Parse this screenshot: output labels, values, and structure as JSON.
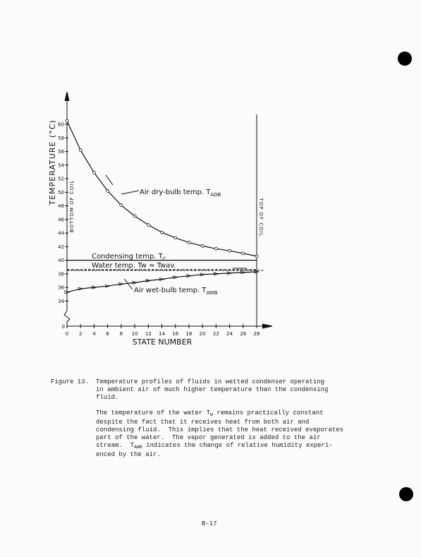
{
  "chart_data": {
    "type": "line",
    "ylabel": "TEMPERATURE (°C)",
    "xlabel": "STATE NUMBER",
    "x": [
      0,
      2,
      4,
      6,
      8,
      10,
      12,
      14,
      16,
      18,
      20,
      22,
      24,
      26,
      28
    ],
    "xlim": [
      0,
      28
    ],
    "xticks": [
      0,
      2,
      4,
      6,
      8,
      10,
      12,
      14,
      16,
      18,
      20,
      22,
      24,
      26,
      28
    ],
    "ylim": [
      33,
      61
    ],
    "yticks": [
      34,
      36,
      38,
      40,
      42,
      44,
      46,
      48,
      50,
      52,
      54,
      56,
      58,
      60
    ],
    "y_origin_label": "0",
    "series": [
      {
        "name": "Air dry-bulb temp. T",
        "sub": "ADB",
        "color": "#111",
        "marker": "circle",
        "dash": false,
        "values": [
          60.5,
          56.2,
          52.9,
          50.2,
          48.1,
          46.5,
          45.2,
          44.1,
          43.3,
          42.6,
          42.1,
          41.7,
          41.4,
          41.0,
          40.6
        ]
      },
      {
        "name": "Condensing temp. T",
        "sub": "C",
        "color": "#111",
        "marker": "none",
        "dash": false,
        "values": [
          40,
          40,
          40,
          40,
          40,
          40,
          40,
          40,
          40,
          40,
          40,
          40,
          40,
          40,
          40
        ]
      },
      {
        "name": "Water temp. Tw ≈ Twav.",
        "sub": "",
        "color": "#111",
        "marker": "none",
        "dash": true,
        "values": [
          38.6,
          38.6,
          38.6,
          38.6,
          38.6,
          38.6,
          38.6,
          38.6,
          38.6,
          38.6,
          38.6,
          38.6,
          38.6,
          38.6,
          38.6
        ]
      },
      {
        "name": "Air wet-bulb temp. T",
        "sub": "AWB",
        "color": "#111",
        "marker": "arrow",
        "dash": false,
        "values": [
          35.3,
          35.8,
          36.0,
          36.2,
          36.5,
          36.7,
          37.0,
          37.2,
          37.5,
          37.7,
          37.9,
          38.0,
          38.1,
          38.2,
          38.3
        ]
      }
    ],
    "annotations": [
      "BOTTOM OF COIL",
      "TOP OF COIL"
    ]
  },
  "caption": {
    "label": "Figure 13.",
    "lines": [
      "Temperature profiles of fluids in wetted condenser operating",
      "in ambient air of much higher temperature than the condensing",
      "fluid."
    ]
  },
  "paragraph": [
    [
      {
        "text": "The temperature of the water T"
      },
      {
        "text": "W",
        "sub": true
      },
      {
        "text": " remains practically constant"
      }
    ],
    [
      {
        "text": "despite the fact that it receives heat from both air and"
      }
    ],
    [
      {
        "text": "condensing fluid.  This implies that the heat received evaporates"
      }
    ],
    [
      {
        "text": "part of the water.  The vapor generated is added to the air"
      }
    ],
    [
      {
        "text": "stream.  T"
      },
      {
        "text": "AWB",
        "sub": true
      },
      {
        "text": " indicates the change of relative humidity experi-"
      }
    ],
    [
      {
        "text": "enced by the air."
      }
    ]
  ],
  "page_number": "B-17"
}
